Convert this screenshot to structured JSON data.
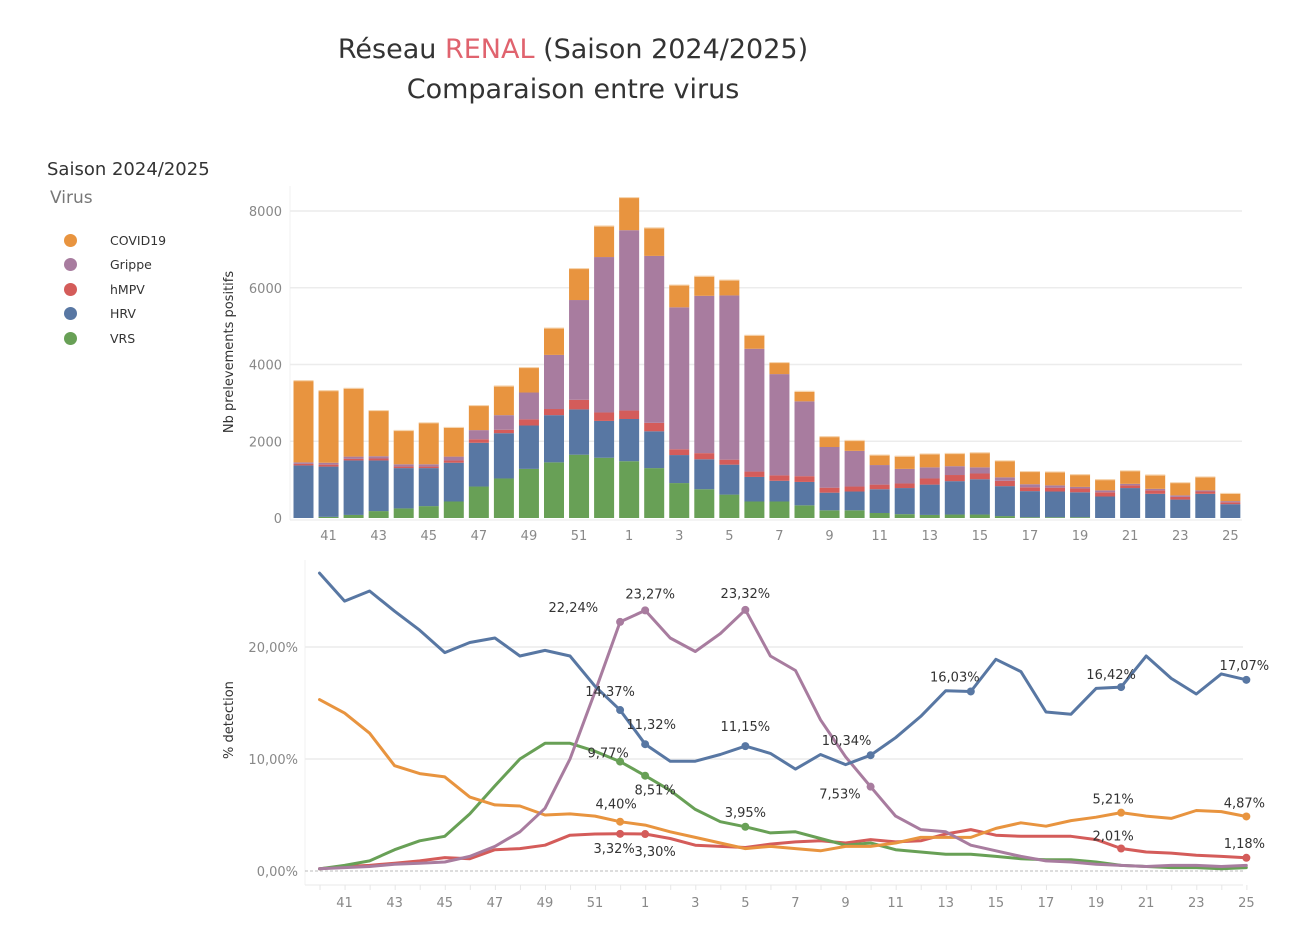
{
  "header": {
    "title_prefix": "Réseau ",
    "title_accent": "RENAL",
    "title_suffix": " (Saison 2024/2025)",
    "subtitle": "Comparaison entre virus"
  },
  "legend": {
    "title": "Saison 2024/2025",
    "subtitle": "Virus",
    "items": [
      {
        "label": "COVID19",
        "color": "#e8943f"
      },
      {
        "label": "Grippe",
        "color": "#a87c9f"
      },
      {
        "label": "hMPV",
        "color": "#d45c5a"
      },
      {
        "label": "HRV",
        "color": "#5877a3"
      },
      {
        "label": "VRS",
        "color": "#68a056"
      }
    ]
  },
  "chart_data": [
    {
      "type": "bar",
      "stacked": true,
      "title": "",
      "xlabel": "",
      "ylabel": "Nb prelevements positifs",
      "ylim": [
        0,
        8500
      ],
      "yticks": [
        0,
        2000,
        4000,
        6000,
        8000
      ],
      "ytick_labels": [
        "0",
        "2000",
        "4000",
        "6000",
        "8000"
      ],
      "grid": true,
      "categories": [
        "40",
        "41",
        "42",
        "43",
        "44",
        "45",
        "46",
        "47",
        "48",
        "49",
        "50",
        "51",
        "52",
        "1",
        "2",
        "3",
        "4",
        "5",
        "6",
        "7",
        "8",
        "9",
        "10",
        "11",
        "12",
        "13",
        "14",
        "15",
        "16",
        "17",
        "18",
        "19",
        "20",
        "21",
        "22",
        "23",
        "24",
        "25"
      ],
      "xtick_labels": [
        "41",
        "43",
        "45",
        "47",
        "49",
        "51",
        "1",
        "3",
        "5",
        "7",
        "9",
        "11",
        "13",
        "15",
        "17",
        "19",
        "21",
        "23",
        "25"
      ],
      "series": [
        {
          "name": "VRS",
          "color": "#68a056",
          "values": [
            0,
            30,
            80,
            180,
            250,
            310,
            430,
            820,
            1030,
            1280,
            1450,
            1650,
            1570,
            1480,
            1300,
            910,
            750,
            610,
            430,
            430,
            330,
            200,
            200,
            130,
            100,
            80,
            90,
            90,
            50,
            20,
            20,
            20,
            0,
            0,
            0,
            0,
            0,
            0
          ]
        },
        {
          "name": "HRV",
          "color": "#5877a3",
          "values": [
            1370,
            1310,
            1420,
            1320,
            1050,
            990,
            1010,
            1140,
            1180,
            1130,
            1230,
            1180,
            960,
            1100,
            960,
            730,
            780,
            780,
            640,
            540,
            610,
            460,
            490,
            620,
            680,
            790,
            870,
            920,
            780,
            680,
            670,
            650,
            560,
            780,
            630,
            480,
            630,
            360
          ]
        },
        {
          "name": "hMPV",
          "color": "#d45c5a",
          "values": [
            40,
            50,
            40,
            50,
            40,
            40,
            60,
            90,
            90,
            160,
            160,
            250,
            220,
            220,
            220,
            150,
            160,
            130,
            140,
            140,
            150,
            130,
            130,
            120,
            120,
            160,
            160,
            150,
            140,
            100,
            100,
            100,
            110,
            70,
            90,
            70,
            60,
            50
          ]
        },
        {
          "name": "Grippe",
          "color": "#a87c9f",
          "values": [
            40,
            50,
            60,
            60,
            60,
            60,
            100,
            240,
            380,
            700,
            1410,
            2600,
            4050,
            4700,
            4350,
            3700,
            4100,
            4280,
            3200,
            2640,
            1950,
            1060,
            930,
            510,
            380,
            290,
            230,
            160,
            90,
            80,
            60,
            40,
            50,
            40,
            40,
            40,
            30,
            30
          ]
        },
        {
          "name": "COVID19",
          "color": "#e8943f",
          "values": [
            2130,
            1880,
            1780,
            1190,
            880,
            1080,
            760,
            640,
            760,
            650,
            700,
            820,
            810,
            850,
            730,
            580,
            510,
            400,
            350,
            300,
            260,
            270,
            270,
            260,
            330,
            350,
            330,
            380,
            430,
            330,
            350,
            320,
            280,
            340,
            360,
            330,
            350,
            200
          ]
        }
      ]
    },
    {
      "type": "line",
      "title": "",
      "xlabel": "",
      "ylabel": "% detection",
      "ylim": [
        -1,
        27
      ],
      "yticks": [
        0,
        10,
        20
      ],
      "ytick_labels": [
        "0,00%",
        "10,00%",
        "20,00%"
      ],
      "grid": true,
      "categories": [
        "40",
        "41",
        "42",
        "43",
        "44",
        "45",
        "46",
        "47",
        "48",
        "49",
        "50",
        "51",
        "52",
        "1",
        "2",
        "3",
        "4",
        "5",
        "6",
        "7",
        "8",
        "9",
        "10",
        "11",
        "12",
        "13",
        "14",
        "15",
        "16",
        "17",
        "18",
        "19",
        "20",
        "21",
        "22",
        "23",
        "24",
        "25"
      ],
      "xtick_labels": [
        "41",
        "43",
        "45",
        "47",
        "49",
        "51",
        "1",
        "3",
        "5",
        "7",
        "9",
        "11",
        "13",
        "15",
        "17",
        "19",
        "21",
        "23",
        "25"
      ],
      "series": [
        {
          "name": "HRV",
          "color": "#5877a3",
          "values": [
            26.6,
            24.1,
            25.0,
            23.2,
            21.5,
            19.5,
            20.4,
            20.8,
            19.2,
            19.7,
            19.2,
            16.5,
            14.37,
            11.32,
            9.8,
            9.8,
            10.4,
            11.15,
            10.5,
            9.1,
            10.4,
            9.5,
            10.34,
            11.9,
            13.8,
            16.1,
            16.03,
            18.9,
            17.8,
            14.2,
            14.0,
            16.3,
            16.42,
            19.2,
            17.2,
            15.8,
            17.6,
            17.07
          ]
        },
        {
          "name": "Grippe",
          "color": "#a87c9f",
          "values": [
            0.2,
            0.3,
            0.4,
            0.6,
            0.7,
            0.8,
            1.3,
            2.2,
            3.5,
            5.6,
            10.0,
            16.0,
            22.24,
            23.27,
            20.8,
            19.6,
            21.2,
            23.32,
            19.2,
            17.9,
            13.5,
            10.2,
            7.53,
            4.9,
            3.7,
            3.5,
            2.3,
            1.8,
            1.3,
            0.9,
            0.8,
            0.6,
            0.5,
            0.4,
            0.5,
            0.5,
            0.4,
            0.5
          ]
        },
        {
          "name": "VRS",
          "color": "#68a056",
          "values": [
            0.2,
            0.5,
            0.9,
            1.9,
            2.7,
            3.1,
            5.1,
            7.6,
            10.0,
            11.4,
            11.4,
            10.7,
            9.77,
            8.51,
            7.2,
            5.5,
            4.4,
            3.95,
            3.4,
            3.5,
            2.9,
            2.3,
            2.5,
            1.9,
            1.7,
            1.5,
            1.5,
            1.3,
            1.1,
            1.0,
            1.0,
            0.8,
            0.5,
            0.4,
            0.3,
            0.3,
            0.2,
            0.3
          ]
        },
        {
          "name": "COVID19",
          "color": "#e8943f",
          "values": [
            15.3,
            14.1,
            12.3,
            9.4,
            8.7,
            8.4,
            6.6,
            5.9,
            5.8,
            5.0,
            5.1,
            4.9,
            4.4,
            4.1,
            3.5,
            3.0,
            2.5,
            2.0,
            2.2,
            2.0,
            1.8,
            2.2,
            2.2,
            2.5,
            3.0,
            3.0,
            3.0,
            3.8,
            4.3,
            4.0,
            4.5,
            4.8,
            5.21,
            4.9,
            4.7,
            5.4,
            5.3,
            4.87
          ]
        },
        {
          "name": "hMPV",
          "color": "#d45c5a",
          "values": [
            0.2,
            0.4,
            0.5,
            0.7,
            0.9,
            1.2,
            1.1,
            1.9,
            2.0,
            2.3,
            3.2,
            3.3,
            3.32,
            3.3,
            2.9,
            2.3,
            2.2,
            2.1,
            2.4,
            2.6,
            2.7,
            2.5,
            2.8,
            2.6,
            2.7,
            3.3,
            3.7,
            3.2,
            3.1,
            3.1,
            3.1,
            2.8,
            2.01,
            1.7,
            1.6,
            1.4,
            1.3,
            1.18
          ]
        }
      ],
      "annotations": [
        {
          "series": "Grippe",
          "category": "52",
          "text": "22,24%"
        },
        {
          "series": "Grippe",
          "category": "1",
          "text": "23,27%"
        },
        {
          "series": "Grippe",
          "category": "5",
          "text": "23,32%"
        },
        {
          "series": "Grippe",
          "category": "10",
          "text": "7,53%"
        },
        {
          "series": "HRV",
          "category": "52",
          "text": "14,37%"
        },
        {
          "series": "HRV",
          "category": "1",
          "text": "11,32%"
        },
        {
          "series": "HRV",
          "category": "5",
          "text": "11,15%"
        },
        {
          "series": "HRV",
          "category": "10",
          "text": "10,34%"
        },
        {
          "series": "HRV",
          "category": "14",
          "text": "16,03%"
        },
        {
          "series": "HRV",
          "category": "20",
          "text": "16,42%"
        },
        {
          "series": "HRV",
          "category": "25",
          "text": "17,07%"
        },
        {
          "series": "VRS",
          "category": "52",
          "text": "9,77%"
        },
        {
          "series": "VRS",
          "category": "1",
          "text": "8,51%"
        },
        {
          "series": "VRS",
          "category": "5",
          "text": "3,95%"
        },
        {
          "series": "COVID19",
          "category": "52",
          "text": "4,40%"
        },
        {
          "series": "COVID19",
          "category": "20",
          "text": "5,21%"
        },
        {
          "series": "COVID19",
          "category": "25",
          "text": "4,87%"
        },
        {
          "series": "hMPV",
          "category": "52",
          "text": "3,32%"
        },
        {
          "series": "hMPV",
          "category": "1",
          "text": "3,30%"
        },
        {
          "series": "hMPV",
          "category": "20",
          "text": "2,01%"
        },
        {
          "series": "hMPV",
          "category": "25",
          "text": "1,18%"
        }
      ]
    }
  ]
}
